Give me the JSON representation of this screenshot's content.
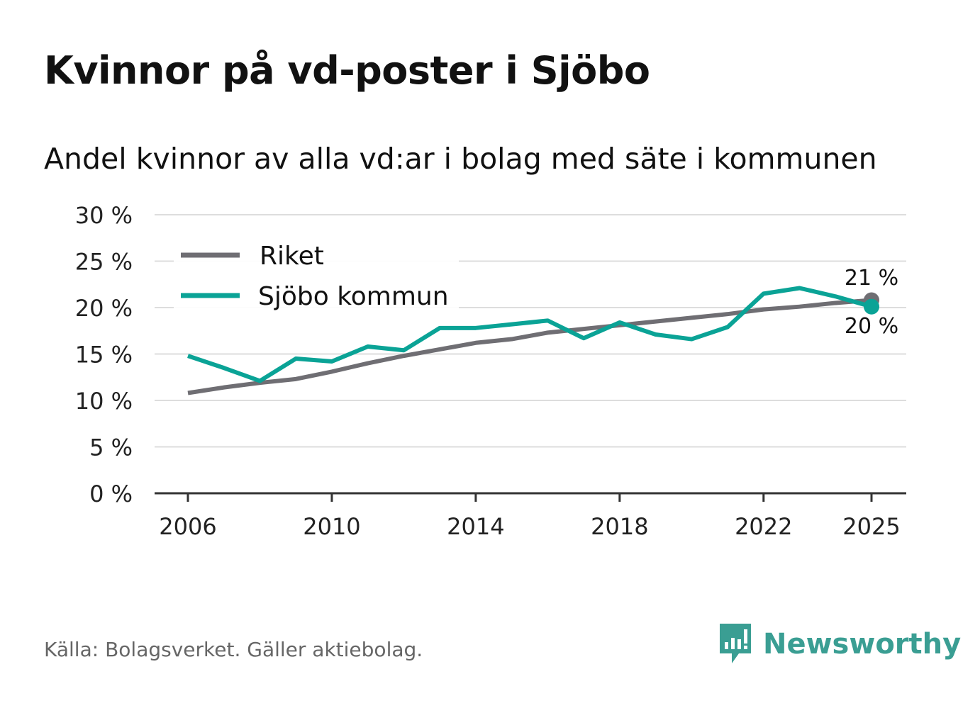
{
  "title": "Kvinnor på vd-poster i Sjöbo",
  "subtitle": "Andel kvinnor av alla vd:ar i bolag med säte i kommunen",
  "source": "Källa: Bolagsverket. Gäller aktiebolag.",
  "logo": "Newsworthy",
  "colors": {
    "riket": "#6f6e73",
    "sjobo": "#0aa396",
    "grid": "#dddddd",
    "axis": "#333333"
  },
  "chart_data": {
    "type": "line",
    "title": "Kvinnor på vd-poster i Sjöbo",
    "ylabel": "",
    "xlabel": "",
    "ylim": [
      0,
      30
    ],
    "xlim": [
      2006,
      2025
    ],
    "yticks": [
      0,
      5,
      10,
      15,
      20,
      25,
      30
    ],
    "ytick_labels": [
      "0 %",
      "5 %",
      "10 %",
      "15 %",
      "20 %",
      "25 %",
      "30 %"
    ],
    "xticks": [
      2006,
      2010,
      2014,
      2018,
      2022,
      2025
    ],
    "xtick_labels": [
      "2006",
      "2010",
      "2014",
      "2018",
      "2022",
      "2025"
    ],
    "grid": true,
    "legend_position": "top-left",
    "x": [
      2006,
      2007,
      2008,
      2009,
      2010,
      2011,
      2012,
      2013,
      2014,
      2015,
      2016,
      2017,
      2018,
      2019,
      2020,
      2021,
      2022,
      2023,
      2024,
      2025
    ],
    "series": [
      {
        "name": "Riket",
        "color": "#6f6e73",
        "end_label": "21 %",
        "values": [
          10.8,
          11.4,
          11.9,
          12.3,
          13.1,
          14.0,
          14.8,
          15.5,
          16.2,
          16.6,
          17.3,
          17.7,
          18.1,
          18.5,
          18.9,
          19.3,
          19.8,
          20.1,
          20.5,
          20.8
        ]
      },
      {
        "name": "Sjöbo kommun",
        "color": "#0aa396",
        "end_label": "20 %",
        "values": [
          14.8,
          13.5,
          12.1,
          14.5,
          14.2,
          15.8,
          15.4,
          17.8,
          17.8,
          18.2,
          18.6,
          16.7,
          18.4,
          17.1,
          16.6,
          17.9,
          21.5,
          22.1,
          21.2,
          20.1
        ]
      }
    ]
  }
}
